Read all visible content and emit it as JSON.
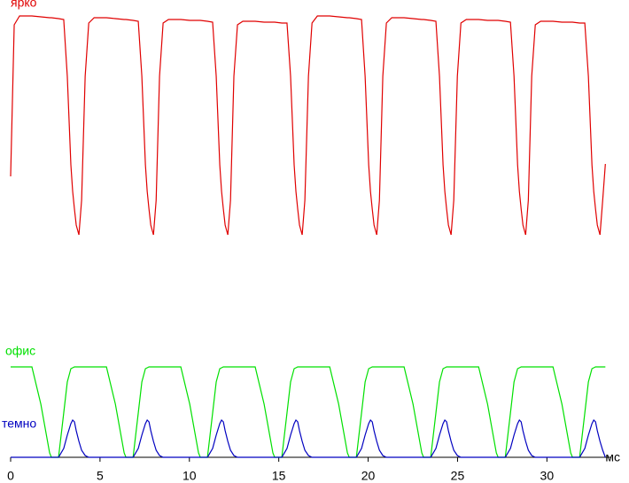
{
  "chart_data": {
    "type": "line",
    "x_unit": "мс",
    "xlim": [
      0,
      33.7
    ],
    "xticks": [
      0,
      5,
      10,
      15,
      20,
      25,
      30
    ],
    "ylim": [
      0,
      510
    ],
    "x": [
      0,
      0.2,
      0.5,
      1.19,
      1.69,
      2.18,
      2.28,
      2.68,
      2.97,
      3.17,
      3.37,
      3.47,
      3.57,
      3.67,
      3.82,
      3.97,
      4.17,
      4.37,
      4.67,
      5.36,
      5.86,
      6.35,
      6.45,
      6.85,
      7.14,
      7.34,
      7.54,
      7.64,
      7.74,
      7.84,
      7.99,
      8.14,
      8.33,
      8.53,
      8.83,
      9.52,
      10.02,
      10.51,
      10.61,
      11.01,
      11.3,
      11.5,
      11.7,
      11.8,
      11.9,
      12.0,
      12.15,
      12.3,
      12.49,
      12.69,
      12.99,
      13.68,
      14.18,
      14.67,
      14.77,
      15.17,
      15.46,
      15.66,
      15.86,
      15.96,
      16.06,
      16.16,
      16.31,
      16.46,
      16.66,
      16.86,
      17.16,
      17.85,
      18.35,
      18.84,
      18.94,
      19.34,
      19.63,
      19.83,
      20.03,
      20.13,
      20.23,
      20.33,
      20.48,
      20.63,
      20.82,
      21.02,
      21.32,
      22.01,
      22.51,
      23.0,
      23.1,
      23.5,
      23.79,
      23.99,
      24.19,
      24.29,
      24.39,
      24.49,
      24.64,
      24.79,
      24.99,
      25.19,
      25.49,
      26.18,
      26.68,
      27.17,
      27.27,
      27.67,
      27.96,
      28.16,
      28.36,
      28.46,
      28.56,
      28.66,
      28.81,
      28.96,
      29.15,
      29.35,
      29.65,
      30.34,
      30.84,
      31.33,
      31.43,
      31.83,
      32.12,
      32.32,
      32.52,
      32.62,
      32.72,
      32.82,
      32.97,
      33.12,
      33.27
    ],
    "series": [
      {
        "name": "ярко",
        "color": "#e00000",
        "values": [
          317,
          488,
          498,
          498,
          497,
          496,
          496,
          495,
          494,
          430,
          330,
          300,
          280,
          262,
          251,
          290,
          430,
          490,
          496,
          496,
          495,
          494,
          494,
          493,
          492,
          430,
          330,
          300,
          280,
          262,
          251,
          290,
          430,
          490,
          494,
          494,
          493,
          493,
          493,
          492,
          491,
          430,
          330,
          300,
          280,
          262,
          251,
          290,
          430,
          488,
          492,
          492,
          491,
          491,
          491,
          490,
          490,
          430,
          330,
          300,
          280,
          262,
          251,
          290,
          430,
          490,
          498,
          498,
          497,
          496,
          496,
          495,
          494,
          430,
          330,
          300,
          280,
          262,
          251,
          290,
          430,
          490,
          496,
          496,
          495,
          494,
          494,
          493,
          492,
          430,
          330,
          300,
          280,
          262,
          251,
          290,
          430,
          490,
          494,
          494,
          493,
          493,
          493,
          492,
          491,
          430,
          330,
          300,
          280,
          262,
          251,
          290,
          430,
          488,
          492,
          492,
          491,
          491,
          491,
          490,
          490,
          430,
          330,
          300,
          280,
          262,
          251,
          290,
          331
        ]
      },
      {
        "name": "офис",
        "color": "#00e000",
        "values": [
          102,
          102,
          102,
          102,
          60,
          5,
          0,
          0,
          50,
          85,
          100,
          101,
          102,
          102,
          102,
          102,
          102,
          102,
          102,
          102,
          60,
          5,
          0,
          0,
          50,
          85,
          100,
          101,
          102,
          102,
          102,
          102,
          102,
          102,
          102,
          102,
          60,
          5,
          0,
          0,
          50,
          85,
          100,
          101,
          102,
          102,
          102,
          102,
          102,
          102,
          102,
          102,
          60,
          5,
          0,
          0,
          50,
          85,
          100,
          101,
          102,
          102,
          102,
          102,
          102,
          102,
          102,
          102,
          60,
          5,
          0,
          0,
          50,
          85,
          100,
          101,
          102,
          102,
          102,
          102,
          102,
          102,
          102,
          102,
          60,
          5,
          0,
          0,
          50,
          85,
          100,
          101,
          102,
          102,
          102,
          102,
          102,
          102,
          102,
          102,
          60,
          5,
          0,
          0,
          50,
          85,
          100,
          101,
          102,
          102,
          102,
          102,
          102,
          102,
          102,
          102,
          60,
          5,
          0,
          0,
          50,
          85,
          100,
          101,
          102,
          102,
          102,
          102,
          102
        ]
      },
      {
        "name": "темно",
        "color": "#0000c0",
        "values": [
          0,
          0,
          0,
          0,
          0,
          0,
          0,
          0,
          10,
          25,
          38,
          42,
          40,
          30,
          18,
          8,
          2,
          0,
          0,
          0,
          0,
          0,
          0,
          0,
          10,
          25,
          38,
          42,
          40,
          30,
          18,
          8,
          2,
          0,
          0,
          0,
          0,
          0,
          0,
          0,
          10,
          25,
          38,
          42,
          40,
          30,
          18,
          8,
          2,
          0,
          0,
          0,
          0,
          0,
          0,
          0,
          10,
          25,
          38,
          42,
          40,
          30,
          18,
          8,
          2,
          0,
          0,
          0,
          0,
          0,
          0,
          0,
          10,
          25,
          38,
          42,
          40,
          30,
          18,
          8,
          2,
          0,
          0,
          0,
          0,
          0,
          0,
          0,
          10,
          25,
          38,
          42,
          40,
          30,
          18,
          8,
          2,
          0,
          0,
          0,
          0,
          0,
          0,
          0,
          10,
          25,
          38,
          42,
          40,
          30,
          18,
          8,
          2,
          0,
          0,
          0,
          0,
          0,
          0,
          0,
          10,
          25,
          38,
          42,
          40,
          30,
          18,
          8,
          0
        ]
      }
    ]
  }
}
